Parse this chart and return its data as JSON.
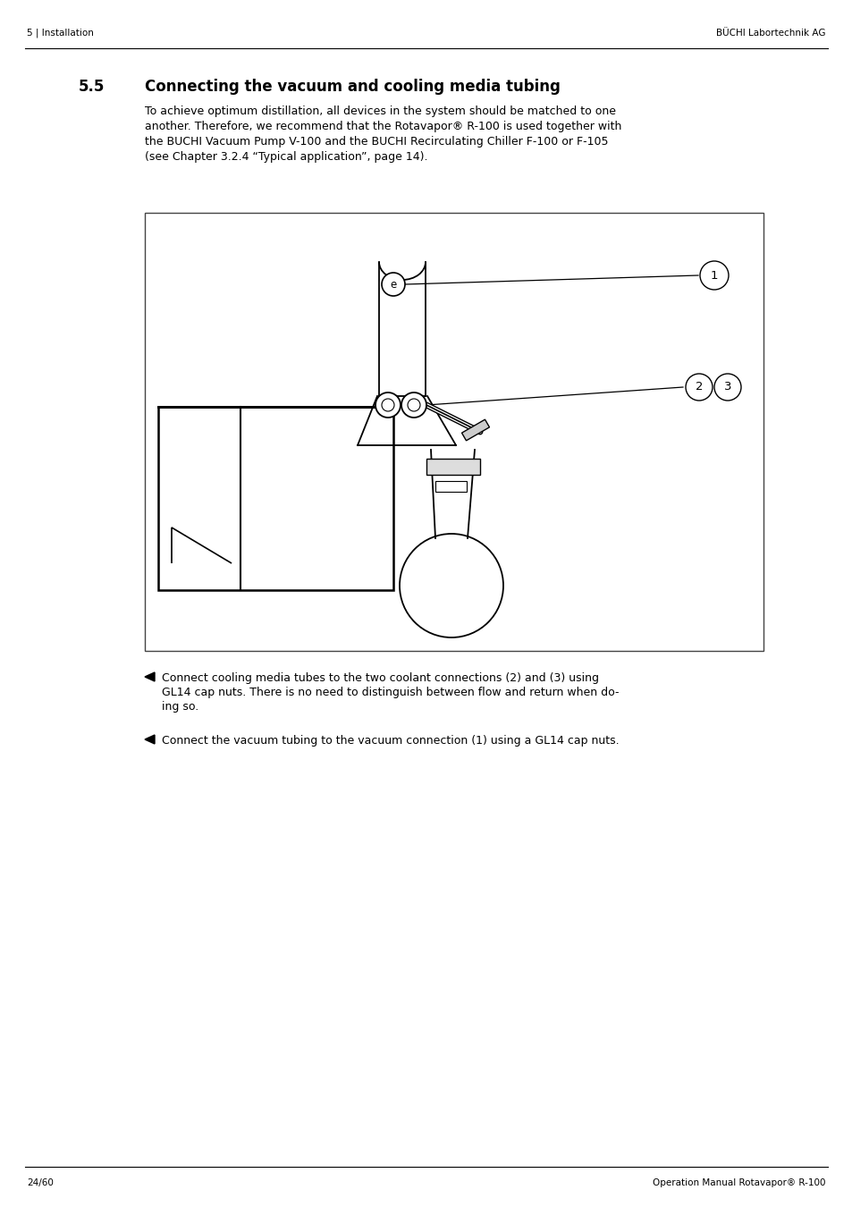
{
  "header_left": "5 | Installation",
  "header_right": "BÜCHI Labortechnik AG",
  "footer_left": "24/60",
  "footer_right": "Operation Manual Rotavapor® R-100",
  "section_number": "5.5",
  "section_title": "Connecting the vacuum and cooling media tubing",
  "body_text": "To achieve optimum distillation, all devices in the system should be matched to one\nanother. Therefore, we recommend that the Rotavapor® R-100 is used together with\nthe BUCHI Vacuum Pump V-100 and the BUCHI Recirculating Chiller F-100 or F-105\n(see Chapter 3.2.4 “Typical application”, page 14).",
  "bullet1_line1": "Connect cooling media tubes to the two coolant connections (2) and (3) using",
  "bullet1_line2": "GL14 cap nuts. There is no need to distinguish between flow and return when do-",
  "bullet1_line3": "ing so.",
  "bullet2": "Connect the vacuum tubing to the vacuum connection (1) using a GL14 cap nuts.",
  "bg_color": "#ffffff",
  "text_color": "#000000",
  "line_color": "#000000",
  "gray_color": "#888888"
}
